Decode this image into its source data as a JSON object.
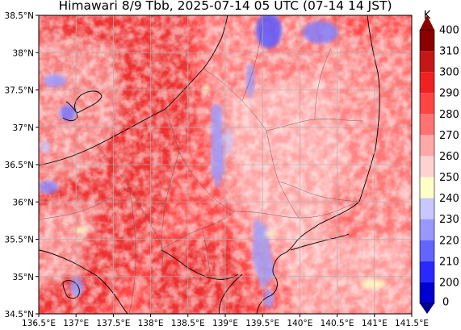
{
  "title": "Himawari 8/9 Tbb, 2025-07-14 05 UTC (07-14 14 JST)",
  "x_ticks": [
    "136.5°E",
    "137°E",
    "137.5°E",
    "138°E",
    "138.5°E",
    "139°E",
    "139.5°E",
    "140°E",
    "140.5°E",
    "141°E",
    "141.5°E"
  ],
  "y_ticks": [
    "38.5°N",
    "38°N",
    "37.5°N",
    "37°N",
    "36.5°N",
    "36°N",
    "35.5°N",
    "35°N",
    "34.5°N"
  ],
  "colorbar": {
    "unit": "K",
    "ticks": [
      "400",
      "310",
      "300",
      "290",
      "280",
      "270",
      "260",
      "250",
      "240",
      "230",
      "220",
      "210",
      "200",
      "0"
    ],
    "colors": [
      "#00008b",
      "#0000d0",
      "#2828ff",
      "#6464ff",
      "#9898ff",
      "#c8c8ff",
      "#ffffc8",
      "#ffd2d2",
      "#ffa8a8",
      "#ff7272",
      "#ff4444",
      "#ee2222",
      "#c41818",
      "#8b0000"
    ],
    "extend": "both"
  },
  "map": {
    "lon_range": [
      136.5,
      141.5
    ],
    "lat_range": [
      34.5,
      38.5
    ],
    "grid": true,
    "colors": {
      "hot_bg": "#ff4a4a",
      "deep_red": "#e52525",
      "mid_pink": "#ff8a8a",
      "light_pink": "#ffc0c0",
      "cold_blue": "#9a9aff",
      "deep_blue": "#5a5aff",
      "pale_yellow": "#ffffc8"
    }
  }
}
